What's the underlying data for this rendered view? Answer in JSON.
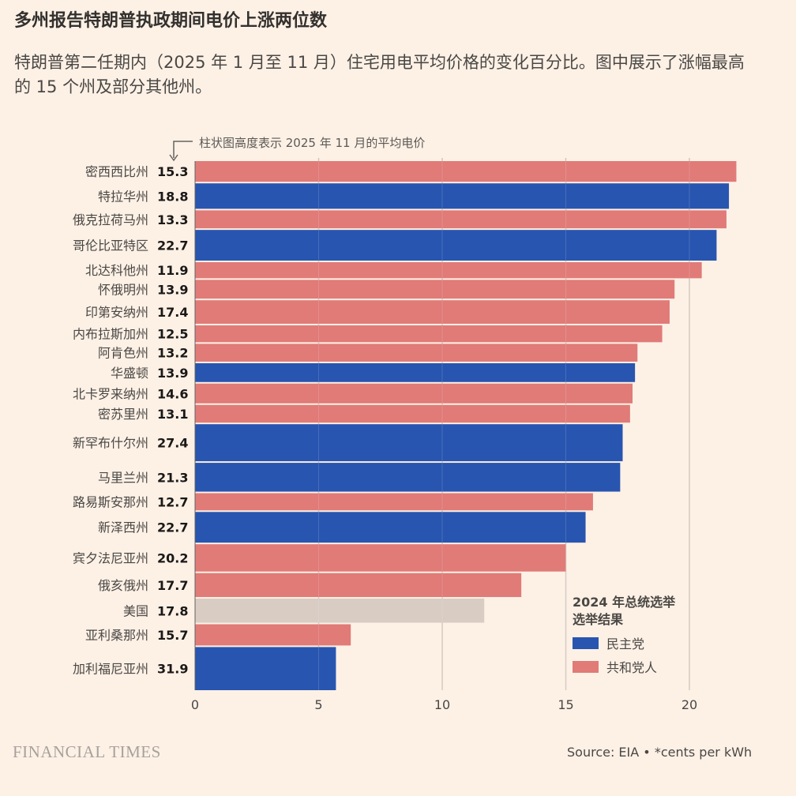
{
  "title": "多州报告特朗普执政期间电价上涨两位数",
  "subtitle": "特朗普第二任期内（2025 年 1 月至 11 月）住宅用电平均价格的变化百分比。图中展示了涨幅最高的 15 个州及部分其他州。",
  "colors": {
    "background": "#fdf1e6",
    "democrat": "#2855b0",
    "republican": "#e07b78",
    "national": "#d8ccc3"
  },
  "chart_data": {
    "type": "bar",
    "orientation": "horizontal",
    "note": "柱状图高度表示 2025 年 11 月的平均电价",
    "xlim": [
      0,
      22
    ],
    "xticks": [
      "0",
      "5",
      "10",
      "15",
      "20"
    ],
    "grid": true,
    "categories": [
      "密西西比州",
      "特拉华州",
      "俄克拉荷马州",
      "哥伦比亚特区",
      "北达科他州",
      "怀俄明州",
      "印第安纳州",
      "内布拉斯加州",
      "阿肯色州",
      "华盛顿",
      "北卡罗来纳州",
      "密苏里州",
      "新罕布什尔州",
      "马里兰州",
      "路易斯安那州",
      "新泽西州",
      "宾夕法尼亚州",
      "俄亥俄州",
      "美国",
      "亚利桑那州",
      "加利福尼亚州"
    ],
    "values": [
      21.9,
      21.6,
      21.5,
      21.1,
      20.5,
      19.4,
      19.2,
      18.9,
      17.9,
      17.8,
      17.7,
      17.6,
      17.3,
      17.2,
      16.1,
      15.8,
      15.0,
      13.2,
      11.7,
      6.3,
      5.7
    ],
    "prices": [
      "15.3",
      "18.8",
      "13.3",
      "22.7",
      "11.9",
      "13.9",
      "17.4",
      "12.5",
      "13.2",
      "13.9",
      "14.6",
      "13.1",
      "27.4",
      "21.3",
      "12.7",
      "22.7",
      "20.2",
      "17.7",
      "17.8",
      "15.7",
      "31.9"
    ],
    "party": [
      "R",
      "D",
      "R",
      "D",
      "R",
      "R",
      "R",
      "R",
      "R",
      "D",
      "R",
      "R",
      "D",
      "D",
      "R",
      "D",
      "R",
      "R",
      "US",
      "R",
      "D"
    ],
    "legend": {
      "title_line1": "2024 年总统选举",
      "title_line2": "选举结果",
      "democrat": "民主党",
      "republican": "共和党人",
      "placement": "bottom-right"
    }
  },
  "footer": {
    "brand": "FINANCIAL TIMES",
    "source": "Source: EIA • *cents per kWh"
  }
}
